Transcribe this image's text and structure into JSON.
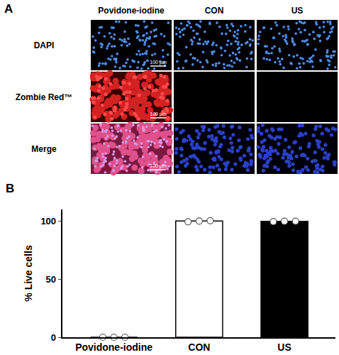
{
  "figure": {
    "panel_a": {
      "label": "A",
      "columns": [
        "Povidone-iodine",
        "CON",
        "US"
      ],
      "rows": [
        "DAPI",
        "Zombie Red™",
        "Merge"
      ],
      "scale_bar": "100 µm"
    }
  },
  "chart_data": {
    "panel_label": "B",
    "type": "bar",
    "categories": [
      "Povidone-iodine",
      "CON",
      "US"
    ],
    "values": [
      0,
      100,
      99.7
    ],
    "points": [
      [
        0,
        0,
        0
      ],
      [
        99.4,
        100,
        100.3
      ],
      [
        99.5,
        99.8,
        99.9
      ]
    ],
    "colors": [
      "#ffffff",
      "#ffffff",
      "#000000"
    ],
    "ylabel": "% Live cells",
    "ylim": [
      0,
      110
    ],
    "yticks": [
      0,
      50,
      100
    ],
    "grid": false
  }
}
